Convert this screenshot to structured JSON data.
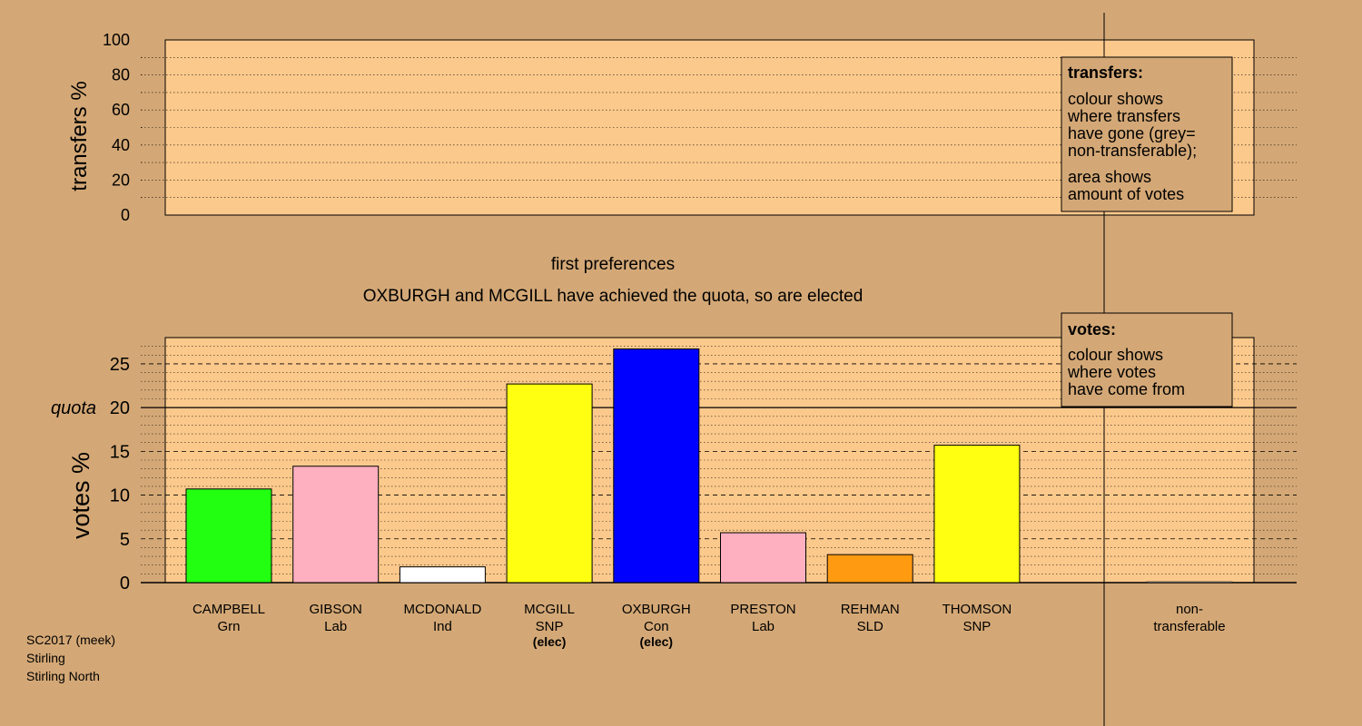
{
  "colors": {
    "background": "#d4a876",
    "panel": "#fcc98c",
    "Grn": "#22ff11",
    "Lab": "#ffb0c0",
    "Ind": "#ffffff",
    "SNP": "#ffff11",
    "Con": "#0000ff",
    "SLD": "#ff9a11",
    "nontransferable": "#aaaaaa"
  },
  "titles": {
    "stage": "first preferences",
    "message": "OXBURGH and MCGILL have achieved the quota, so are elected"
  },
  "legends": {
    "transfers": {
      "heading": "transfers:",
      "lines": [
        "colour shows",
        "where transfers",
        "have gone (grey=",
        "non-transferable);"
      ],
      "lines2": [
        "area shows",
        "amount of votes"
      ]
    },
    "votes": {
      "heading": "votes:",
      "lines": [
        "colour shows",
        "where votes",
        "have come from"
      ]
    }
  },
  "footer": {
    "lines": [
      "SC2017 (meek)",
      "Stirling",
      "Stirling North"
    ]
  },
  "chart_data": [
    {
      "type": "bar",
      "name": "transfers",
      "ylabel": "transfers %",
      "ylim": [
        0,
        100
      ],
      "yticks": [
        0,
        20,
        40,
        60,
        80,
        100
      ],
      "categories": [],
      "values": []
    },
    {
      "type": "bar",
      "name": "votes",
      "ylabel": "votes %",
      "ylim": [
        0,
        28
      ],
      "yticks": [
        0,
        5,
        10,
        15,
        20,
        25
      ],
      "quota": 20,
      "quota_label": "quota",
      "categories": [
        {
          "name": "CAMPBELL",
          "party": "Grn",
          "value": 10.7,
          "elected": false
        },
        {
          "name": "GIBSON",
          "party": "Lab",
          "value": 13.3,
          "elected": false
        },
        {
          "name": "MCDONALD",
          "party": "Ind",
          "value": 1.8,
          "elected": false
        },
        {
          "name": "MCGILL",
          "party": "SNP",
          "value": 22.7,
          "elected": true
        },
        {
          "name": "OXBURGH",
          "party": "Con",
          "value": 26.7,
          "elected": true
        },
        {
          "name": "PRESTON",
          "party": "Lab",
          "value": 5.7,
          "elected": false
        },
        {
          "name": "REHMAN",
          "party": "SLD",
          "value": 3.2,
          "elected": false
        },
        {
          "name": "THOMSON",
          "party": "SNP",
          "value": 15.7,
          "elected": false
        }
      ],
      "elected_label": "(elec)",
      "nontransferable": {
        "label_line1": "non-",
        "label_line2": "transferable",
        "value": 0
      }
    }
  ]
}
